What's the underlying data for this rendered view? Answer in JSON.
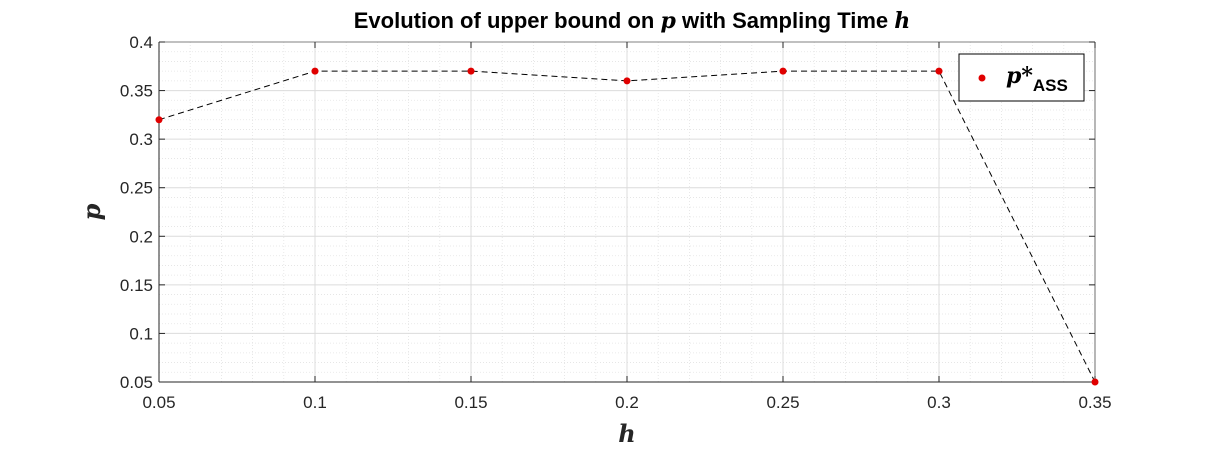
{
  "chart_data": {
    "type": "scatter",
    "title_parts": {
      "prefix": "Evolution of upper bound on ",
      "var1": "p",
      "middle": " with Sampling Time ",
      "var2": "h"
    },
    "xlabel": "h",
    "ylabel": "p",
    "xlim": [
      0.05,
      0.35
    ],
    "ylim": [
      0.05,
      0.4
    ],
    "xticks": [
      0.05,
      0.1,
      0.15,
      0.2,
      0.25,
      0.3,
      0.35
    ],
    "xtick_labels": [
      "0.05",
      "0.1",
      "0.15",
      "0.2",
      "0.25",
      "0.3",
      "0.35"
    ],
    "yticks": [
      0.05,
      0.1,
      0.15,
      0.2,
      0.25,
      0.3,
      0.35,
      0.4
    ],
    "ytick_labels": [
      "0.05",
      "0.1",
      "0.15",
      "0.2",
      "0.25",
      "0.3",
      "0.35",
      "0.4"
    ],
    "grid": true,
    "minor_grid": true,
    "legend_placement": "top-right",
    "series": [
      {
        "name": "p*ASS",
        "legend_main": "p*",
        "legend_sub": "ASS",
        "marker": "circle",
        "marker_color": "#e00000",
        "line_style": "dashed",
        "line_color": "#000000",
        "x": [
          0.05,
          0.1,
          0.15,
          0.2,
          0.25,
          0.3,
          0.35
        ],
        "y": [
          0.32,
          0.37,
          0.37,
          0.36,
          0.37,
          0.37,
          0.05
        ]
      }
    ]
  }
}
